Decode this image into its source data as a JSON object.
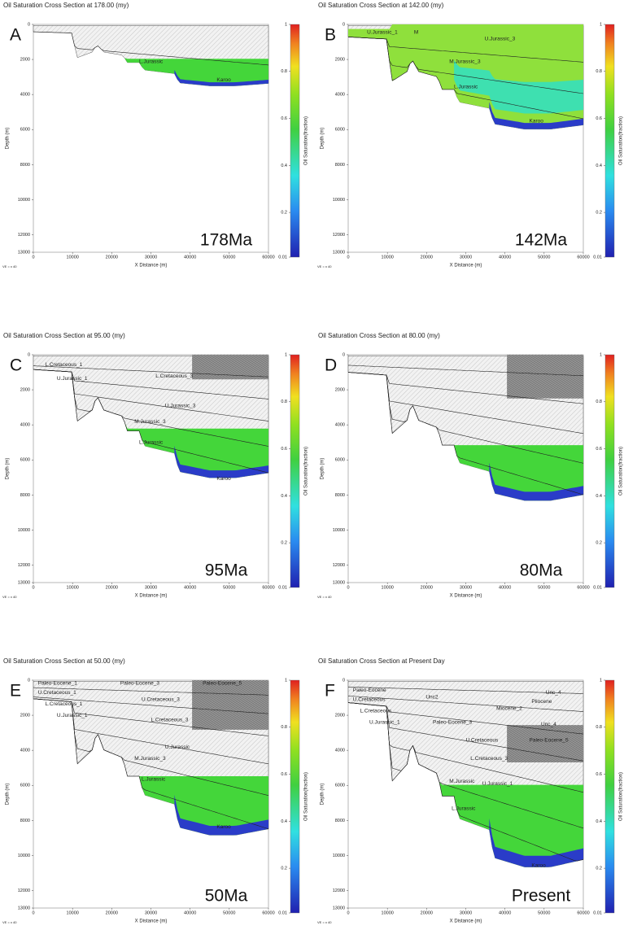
{
  "axes": {
    "xlabel": "X Distance (m)",
    "ylabel": "Depth (m)",
    "xticks": [
      0,
      10000,
      20000,
      30000,
      40000,
      50000,
      60000
    ],
    "yticks": [
      0,
      2000,
      4000,
      6000,
      8000,
      10000,
      12000,
      13000
    ],
    "colorbar_label": "Oil Saturation(fraction)",
    "colorbar_ticks": [
      0.01,
      0.2,
      0.4,
      0.6,
      0.8,
      1
    ],
    "ve_note": "VE = x 40"
  },
  "panels": [
    {
      "title": "Oil Saturation Cross Section at 178.00 (my)",
      "letter": "A",
      "age": "178Ma",
      "layers": [
        "L.Jurassic",
        "Karoo"
      ]
    },
    {
      "title": "Oil Saturation Cross Section at 142.00 (my)",
      "letter": "B",
      "age": "142Ma",
      "layers": [
        "U.Jurassic_1",
        "M",
        "U.Jurassic_3",
        "M.Jurassic_3",
        "L.Jurassic",
        "Karoo"
      ]
    },
    {
      "title": "Oil Saturation Cross Section at 95.00 (my)",
      "letter": "C",
      "age": "95Ma",
      "layers": [
        "L.Cretaceous_1",
        "U.Jurassic_1",
        "L.Cretaceous_3",
        "U.Jurassic_3",
        "M.Jurassic_3",
        "L.Jurassic",
        "Karoo"
      ]
    },
    {
      "title": "Oil Saturation Cross Section at 80.00 (my)",
      "letter": "D",
      "age": "80Ma",
      "layers": []
    },
    {
      "title": "Oil Saturation Cross Section at 50.00 (my)",
      "letter": "E",
      "age": "50Ma",
      "layers": [
        "Paleo-Eocene_1",
        "U.Cretaceous_1",
        "L.Cretaceous_1",
        "U.Jurassic_1",
        "Paleo-Eocene_3",
        "Paleo-Eocene_5",
        "U.Cretaceous_3",
        "L.Cretaceous_3",
        "U.Jurassic",
        "M.Jurassic_3",
        "L.Jurassic",
        "Karoo"
      ]
    },
    {
      "title": "Oil Saturation Cross Section at Present Day",
      "letter": "F",
      "age": "Present",
      "layers": [
        "Paleo-Eocene",
        "U.Cretaceous",
        "L.Cretaceous",
        "U.Jurassic_1",
        "Unc2",
        "Unc_4",
        "Pliocene",
        "Miocene_2",
        "Paleo-Eocene_3",
        "Unc_4",
        "Paleo-Eocene_5",
        "U.Cretaceous",
        "L.Cretaceous_3",
        "M.Jurassic",
        "U.Jurassic_1",
        "L.Jurassic",
        "Karoo"
      ]
    }
  ]
}
